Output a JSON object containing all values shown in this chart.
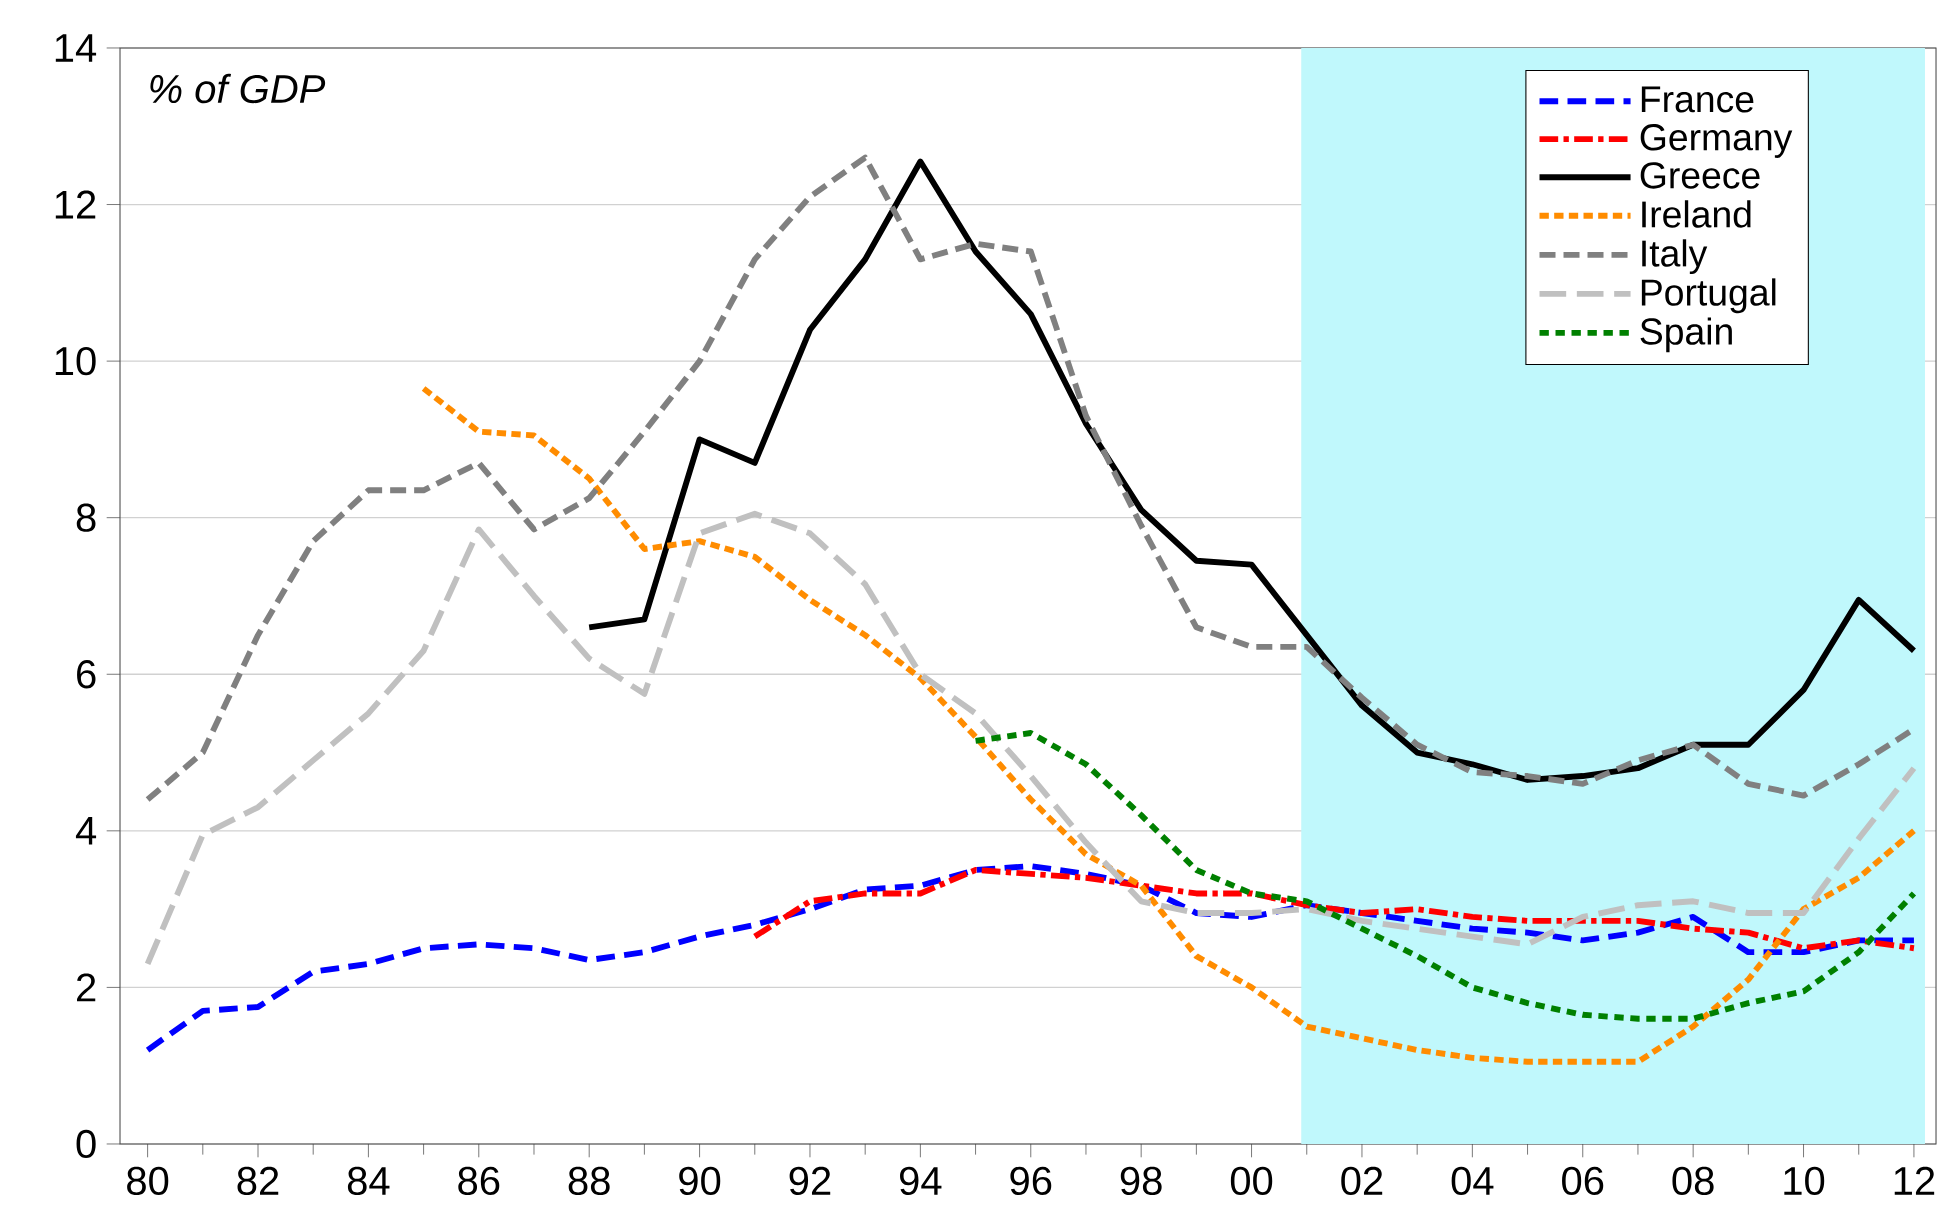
{
  "chart_data": {
    "type": "line",
    "annotations": [
      "% of GDP"
    ],
    "xlim": [
      1979.5,
      2012.4
    ],
    "ylim": [
      0,
      14
    ],
    "yticks": [
      0,
      2,
      4,
      6,
      8,
      10,
      12,
      14
    ],
    "xticks": [
      {
        "value": 1980,
        "label": "80"
      },
      {
        "value": 1982,
        "label": "82"
      },
      {
        "value": 1984,
        "label": "84"
      },
      {
        "value": 1986,
        "label": "86"
      },
      {
        "value": 1988,
        "label": "88"
      },
      {
        "value": 1990,
        "label": "90"
      },
      {
        "value": 1992,
        "label": "92"
      },
      {
        "value": 1994,
        "label": "94"
      },
      {
        "value": 1996,
        "label": "96"
      },
      {
        "value": 1998,
        "label": "98"
      },
      {
        "value": 2000,
        "label": "00"
      },
      {
        "value": 2002,
        "label": "02"
      },
      {
        "value": 2004,
        "label": "04"
      },
      {
        "value": 2006,
        "label": "06"
      },
      {
        "value": 2008,
        "label": "08"
      },
      {
        "value": 2010,
        "label": "10"
      },
      {
        "value": 2012,
        "label": "12"
      }
    ],
    "grid": "y",
    "legend": "top right",
    "bands": [
      {
        "axis": "x",
        "from": 2000.9,
        "to": 2012.2,
        "color": "#c0f8fc"
      }
    ],
    "series": [
      {
        "name": "France",
        "color": "#0000ff",
        "line_style": "dashed",
        "x": [
          1980,
          1981,
          1982,
          1983,
          1984,
          1985,
          1986,
          1987,
          1988,
          1989,
          1990,
          1991,
          1992,
          1993,
          1994,
          1995,
          1996,
          1997,
          1998,
          1999,
          2000,
          2001,
          2002,
          2003,
          2004,
          2005,
          2006,
          2007,
          2008,
          2009,
          2010,
          2011,
          2012
        ],
        "values": [
          1.2,
          1.7,
          1.75,
          2.2,
          2.3,
          2.5,
          2.55,
          2.5,
          2.35,
          2.45,
          2.65,
          2.8,
          3.0,
          3.25,
          3.3,
          3.5,
          3.55,
          3.45,
          3.3,
          2.95,
          2.9,
          3.05,
          2.95,
          2.85,
          2.75,
          2.7,
          2.6,
          2.7,
          2.9,
          2.45,
          2.45,
          2.6,
          2.6
        ]
      },
      {
        "name": "Germany",
        "color": "#ff0000",
        "line_style": "dashed",
        "x": [
          1991,
          1992,
          1993,
          1994,
          1995,
          1996,
          1997,
          1998,
          1999,
          2000,
          2001,
          2002,
          2003,
          2004,
          2005,
          2006,
          2007,
          2008,
          2009,
          2010,
          2011,
          2012
        ],
        "values": [
          2.65,
          3.1,
          3.2,
          3.2,
          3.5,
          3.45,
          3.4,
          3.3,
          3.2,
          3.2,
          3.05,
          2.95,
          3.0,
          2.9,
          2.85,
          2.85,
          2.85,
          2.75,
          2.7,
          2.5,
          2.6,
          2.5
        ]
      },
      {
        "name": "Greece",
        "color": "#000000",
        "line_style": "solid",
        "x": [
          1988,
          1989,
          1990,
          1991,
          1992,
          1993,
          1994,
          1995,
          1996,
          1997,
          1998,
          1999,
          2000,
          2001,
          2002,
          2003,
          2004,
          2005,
          2006,
          2007,
          2008,
          2009,
          2010,
          2011,
          2012
        ],
        "values": [
          6.6,
          6.7,
          9.0,
          8.7,
          10.4,
          11.3,
          12.55,
          11.4,
          10.6,
          9.2,
          8.1,
          7.45,
          7.4,
          6.5,
          5.6,
          5.0,
          4.85,
          4.65,
          4.7,
          4.8,
          5.1,
          5.1,
          5.8,
          6.95,
          6.3
        ]
      },
      {
        "name": "Ireland",
        "color": "#ff8c00",
        "line_style": "dashed",
        "x": [
          1985,
          1986,
          1987,
          1988,
          1989,
          1990,
          1991,
          1992,
          1993,
          1994,
          1995,
          1996,
          1997,
          1998,
          1999,
          2000,
          2001,
          2002,
          2003,
          2004,
          2005,
          2006,
          2007,
          2008,
          2009,
          2010,
          2011,
          2012
        ],
        "values": [
          9.65,
          9.1,
          9.05,
          8.5,
          7.6,
          7.7,
          7.5,
          6.95,
          6.5,
          5.95,
          5.2,
          4.4,
          3.7,
          3.3,
          2.4,
          2.0,
          1.5,
          1.35,
          1.2,
          1.1,
          1.05,
          1.05,
          1.05,
          1.5,
          2.1,
          3.0,
          3.4,
          4.0
        ]
      },
      {
        "name": "Italy",
        "color": "#808080",
        "line_style": "dashed",
        "x": [
          1980,
          1981,
          1982,
          1983,
          1984,
          1985,
          1986,
          1987,
          1988,
          1989,
          1990,
          1991,
          1992,
          1993,
          1994,
          1995,
          1996,
          1997,
          1998,
          1999,
          2000,
          2001,
          2002,
          2003,
          2004,
          2005,
          2006,
          2007,
          2008,
          2009,
          2010,
          2011,
          2012
        ],
        "values": [
          4.4,
          5.0,
          6.5,
          7.7,
          8.35,
          8.35,
          8.7,
          7.85,
          8.25,
          9.1,
          10.0,
          11.3,
          12.1,
          12.6,
          11.3,
          11.5,
          11.4,
          9.3,
          7.9,
          6.6,
          6.35,
          6.35,
          5.7,
          5.1,
          4.75,
          4.7,
          4.6,
          4.9,
          5.1,
          4.6,
          4.45,
          4.85,
          5.3
        ]
      },
      {
        "name": "Portugal",
        "color": "#c0c0c0",
        "line_style": "dashed",
        "x": [
          1980,
          1981,
          1982,
          1983,
          1984,
          1985,
          1986,
          1987,
          1988,
          1989,
          1990,
          1991,
          1992,
          1993,
          1994,
          1995,
          1996,
          1997,
          1998,
          1999,
          2000,
          2001,
          2002,
          2003,
          2004,
          2005,
          2006,
          2007,
          2008,
          2009,
          2010,
          2011,
          2012
        ],
        "values": [
          2.3,
          3.95,
          4.3,
          4.9,
          5.5,
          6.3,
          7.85,
          7.0,
          6.2,
          5.75,
          7.8,
          8.05,
          7.8,
          7.15,
          6.0,
          5.5,
          4.7,
          3.85,
          3.1,
          2.95,
          2.95,
          3.0,
          2.85,
          2.75,
          2.65,
          2.55,
          2.9,
          3.05,
          3.1,
          2.95,
          2.95,
          3.9,
          4.8
        ]
      },
      {
        "name": "Spain",
        "color": "#008000",
        "line_style": "dashed",
        "x": [
          1995,
          1996,
          1997,
          1998,
          1999,
          2000,
          2001,
          2002,
          2003,
          2004,
          2005,
          2006,
          2007,
          2008,
          2009,
          2010,
          2011,
          2012
        ],
        "values": [
          5.15,
          5.25,
          4.85,
          4.2,
          3.5,
          3.2,
          3.1,
          2.75,
          2.4,
          2.0,
          1.8,
          1.65,
          1.6,
          1.6,
          1.8,
          1.95,
          2.45,
          3.2
        ]
      }
    ]
  }
}
